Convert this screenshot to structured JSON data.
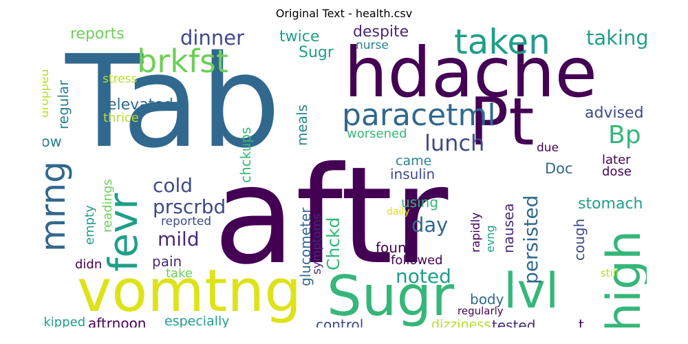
{
  "title": "Original Text - health.csv",
  "words": [
    "Tab",
    "aftr",
    "hdache",
    "Pt",
    "vomtng",
    "Sugr",
    "lvl",
    "high",
    "fevr",
    "mrng",
    "taken",
    "brkfst",
    "paracetml",
    "dinner",
    "taking",
    "lunch",
    "Bp",
    "cold",
    "prscrbd",
    "mild",
    "day",
    "noted",
    "persisted",
    "stomach",
    "advised",
    "Chckd",
    "reports",
    "twice",
    "despite",
    "Sugr",
    "nurse",
    "stress",
    "regular",
    "dropped",
    "elevated",
    "thrice",
    "low",
    "meals",
    "chckups",
    "worsened",
    "Doc",
    "due",
    "later",
    "dose",
    "came",
    "insulin",
    "empty",
    "readings",
    "reported",
    "pain",
    "take",
    "didn",
    "using",
    "daily",
    "rapidly",
    "evng",
    "nausea",
    "cough",
    "glucometer",
    "symptoms",
    "found",
    "followed",
    "body",
    "still",
    "skipped",
    "aftrnoon",
    "especially",
    "control",
    "regularly",
    "dizziness",
    "tested",
    "t"
  ],
  "colors": {
    "purple_dark": "#440154",
    "purple": "#482878",
    "indigo": "#3e4989",
    "blue": "#31688e",
    "teal": "#26828e",
    "teal_green": "#1f9e89",
    "green": "#35b779",
    "lime": "#6ece58",
    "yellow_green": "#b5de2b",
    "yellow": "#dde318"
  }
}
